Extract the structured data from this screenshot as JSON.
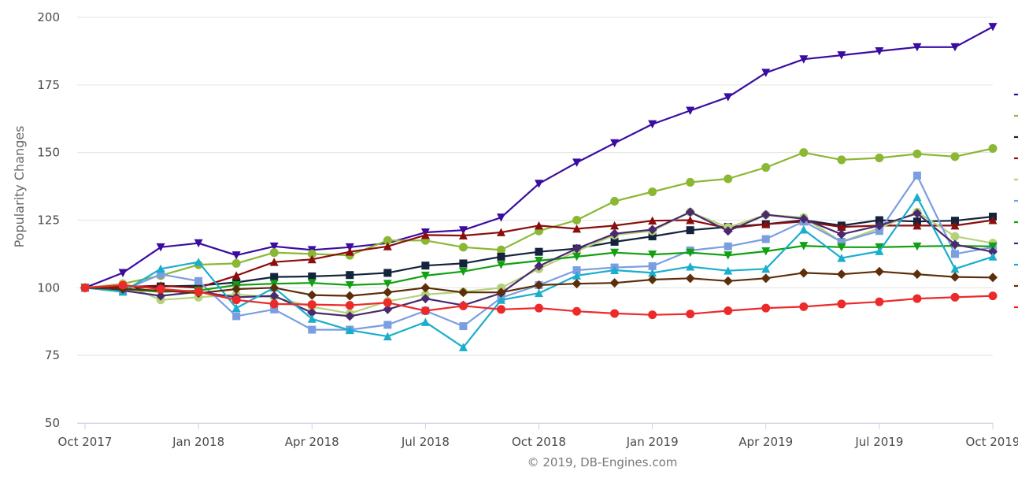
{
  "chart_data": {
    "type": "line",
    "title": "",
    "ylabel": "Popularity Changes",
    "xlabel": "",
    "credit": "© 2019, DB-Engines.com",
    "ylim": [
      50,
      200
    ],
    "y_ticks": [
      50,
      75,
      100,
      125,
      150,
      175,
      200
    ],
    "y_tick_labels": [
      "50",
      "75",
      "100",
      "125",
      "150",
      "175",
      "200"
    ],
    "grid": "horizontal",
    "legend": "right (series names clipped)",
    "x": [
      "Oct 2017",
      "Nov 2017",
      "Dec 2017",
      "Jan 2018",
      "Feb 2018",
      "Mar 2018",
      "Apr 2018",
      "May 2018",
      "Jun 2018",
      "Jul 2018",
      "Aug 2018",
      "Sep 2018",
      "Oct 2018",
      "Nov 2018",
      "Dec 2018",
      "Jan 2019",
      "Feb 2019",
      "Mar 2019",
      "Apr 2019",
      "May 2019",
      "Jun 2019",
      "Jul 2019",
      "Aug 2019",
      "Sep 2019",
      "Oct 2019"
    ],
    "x_tick_labels": [
      {
        "label": "Oct 2017",
        "index": 0
      },
      {
        "label": "Jan 2018",
        "index": 3
      },
      {
        "label": "Apr 2018",
        "index": 6
      },
      {
        "label": "Jul 2018",
        "index": 9
      },
      {
        "label": "Oct 2018",
        "index": 12
      },
      {
        "label": "Jan 2019",
        "index": 15
      },
      {
        "label": "Apr 2019",
        "index": 18
      },
      {
        "label": "Jul 2019",
        "index": 21
      },
      {
        "label": "Oct 2019",
        "index": 24
      }
    ],
    "series": [
      {
        "color": "#3a0ca0",
        "marker": "triangle-down",
        "values": [
          100,
          105.5,
          115,
          116.5,
          112,
          115.3,
          114,
          115,
          116.5,
          120.5,
          121.3,
          126,
          138.5,
          146.3,
          153.5,
          160.5,
          165.5,
          170.5,
          179.5,
          184.5,
          186,
          187.5,
          189,
          189,
          196.5
        ]
      },
      {
        "color": "#8ab833",
        "marker": "circle",
        "values": [
          100,
          101.5,
          104.5,
          108.5,
          109,
          113,
          112.5,
          112,
          117.5,
          117.5,
          115,
          114,
          121,
          125,
          132,
          135.5,
          139,
          140.3,
          144.5,
          150,
          147.3,
          148,
          149.5,
          148.5,
          151.5
        ]
      },
      {
        "color": "#14233c",
        "marker": "square",
        "values": [
          100,
          99.5,
          100.5,
          100.8,
          102,
          104,
          104.2,
          104.7,
          105.5,
          108.2,
          109,
          111.5,
          113.3,
          114.5,
          117,
          119,
          121.3,
          122.5,
          123.5,
          125,
          123,
          125,
          124.5,
          124.8,
          126.3
        ]
      },
      {
        "color": "#8a0e0e",
        "marker": "triangle-up",
        "values": [
          100,
          100.3,
          100.8,
          100,
          104.5,
          109.5,
          110.5,
          113.3,
          115.3,
          119.5,
          119.3,
          120.5,
          123,
          121.8,
          123,
          124.8,
          125,
          122,
          123.5,
          124.5,
          122.5,
          123,
          123,
          123,
          125
        ]
      },
      {
        "color": "#b5d27a",
        "marker": "circle",
        "values": [
          100,
          101.5,
          95.5,
          96.5,
          97.5,
          96.5,
          93,
          90.5,
          95,
          97.5,
          98.5,
          100,
          107,
          113.5,
          119.5,
          121,
          128,
          122.3,
          127,
          126,
          117,
          122,
          128,
          119,
          116.5
        ]
      },
      {
        "color": "#7b9ee0",
        "marker": "square",
        "values": [
          100,
          99,
          105,
          102.5,
          89.5,
          92,
          84.5,
          84.5,
          86.3,
          91.5,
          85.8,
          96.3,
          101,
          106.5,
          107.5,
          108,
          113.8,
          115.3,
          118,
          124.5,
          117,
          121,
          141.5,
          112.5,
          115
        ]
      },
      {
        "color": "#12a012",
        "marker": "triangle-down",
        "values": [
          100,
          99.5,
          98.5,
          99,
          101,
          101.5,
          101.8,
          101,
          101.5,
          104.5,
          106,
          108.5,
          110,
          111.5,
          113,
          112.3,
          113,
          112,
          113.5,
          115.5,
          115,
          115,
          115.3,
          115.5,
          115.3
        ]
      },
      {
        "color": "#4a2a6e",
        "marker": "diamond",
        "values": [
          100,
          99,
          97,
          98.5,
          96.5,
          97,
          90.8,
          89.5,
          92,
          96,
          93.5,
          98,
          108,
          114.5,
          120,
          121.5,
          128,
          121,
          127,
          125.5,
          119.8,
          123,
          127.5,
          116,
          113.3
        ]
      },
      {
        "color": "#1aaecc",
        "marker": "triangle-up",
        "values": [
          100,
          98.5,
          107,
          109.5,
          92.5,
          100,
          88.5,
          84.3,
          82,
          87.3,
          78,
          95.5,
          98,
          104.5,
          106.5,
          105.5,
          107.8,
          106.3,
          107,
          121.5,
          111,
          113.5,
          133.5,
          107,
          111.5
        ]
      },
      {
        "color": "#5c2e0a",
        "marker": "diamond",
        "values": [
          100,
          99.5,
          99,
          98,
          99.5,
          100,
          97.3,
          97,
          98.3,
          100,
          98.3,
          98.3,
          101,
          101.5,
          101.8,
          103,
          103.5,
          102.5,
          103.5,
          105.5,
          105,
          106,
          105,
          104,
          103.8
        ]
      },
      {
        "color": "#ec2a2a",
        "marker": "circle",
        "values": [
          100,
          101,
          99.5,
          98.5,
          95.5,
          94,
          93.8,
          93.5,
          94.5,
          91.5,
          93.3,
          92,
          92.5,
          91.3,
          90.5,
          90,
          90.3,
          91.5,
          92.5,
          93,
          94,
          94.8,
          96,
          96.5,
          97
        ]
      }
    ]
  }
}
